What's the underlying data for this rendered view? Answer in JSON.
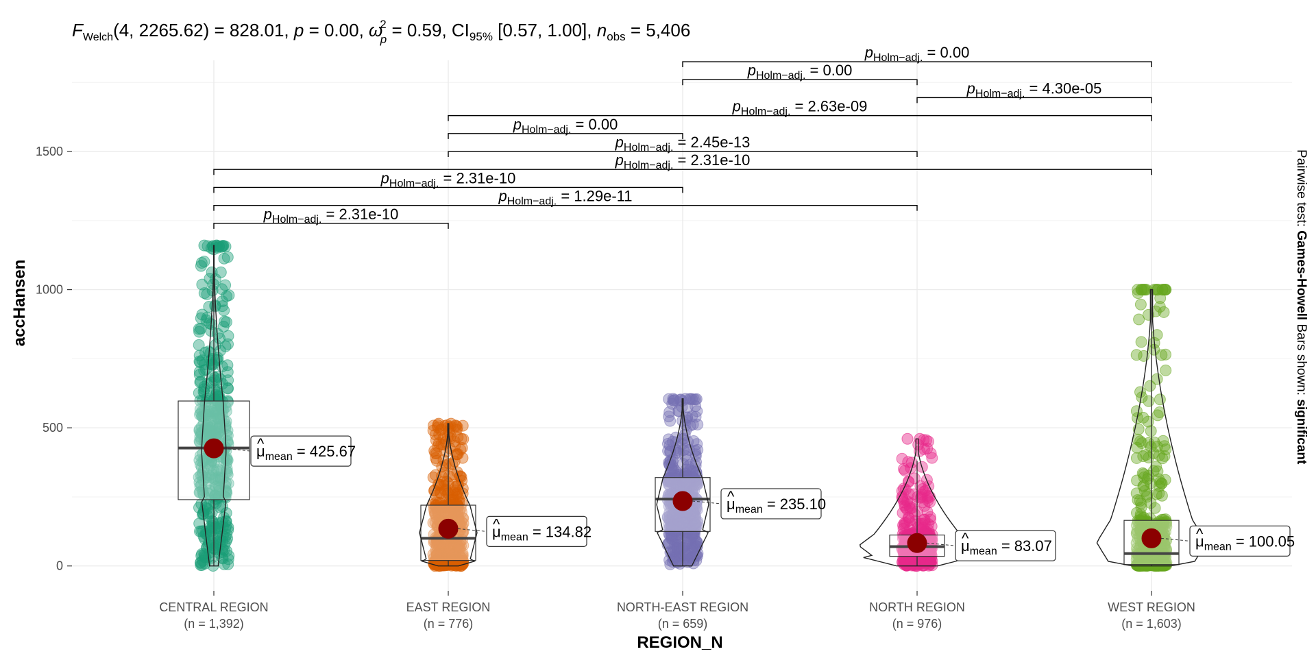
{
  "chart_data": {
    "type": "violin",
    "title": "F Welch(4, 2265.62) = 828.01, p = 0.00, ω̂²p = 0.59, CI95% [0.57, 1.00], n obs = 5,406",
    "title_parts": {
      "stat": "F",
      "stat_sub": "Welch",
      "df": "(4, 2265.62) = 828.01, ",
      "p": "p",
      "p_val": " = 0.00, ",
      "omega": "ω",
      "omega_sup": "2",
      "omega_sub": "p",
      "omega_val": " = 0.59, CI",
      "ci_sub": "95%",
      "ci_val": " [0.57, 1.00], ",
      "n": "n",
      "n_sub": "obs",
      "n_val": " = 5,406"
    },
    "xlabel": "REGION_N",
    "ylabel": "accHansen",
    "ylim": [
      -90,
      1830
    ],
    "yticks": [
      0,
      500,
      1000,
      1500
    ],
    "side_caption_prefix": "Pairwise test: ",
    "side_caption_test": "Games-Howell",
    "side_caption_middle": " Bars shown: ",
    "side_caption_bars": "significant",
    "mean_label_symbol": "μ",
    "mean_label_sub": "mean",
    "p_label_symbol": "p",
    "p_label_sub": "Holm−adj.",
    "groups": [
      {
        "name": "CENTRAL REGION",
        "n_label": "(n = 1,392)",
        "color": "#1b9e77",
        "mean": 425.67,
        "mean_label": "= 425.67",
        "median": 427,
        "q1": 240,
        "q3": 597,
        "whisker_low": 0,
        "whisker_high": 1150,
        "max": 1160
      },
      {
        "name": "EAST REGION",
        "n_label": "(n = 776)",
        "color": "#d95f02",
        "mean": 134.82,
        "mean_label": "= 134.82",
        "median": 100,
        "q1": 20,
        "q3": 220,
        "whisker_low": 0,
        "whisker_high": 500,
        "max": 515
      },
      {
        "name": "NORTH-EAST REGION",
        "n_label": "(n = 659)",
        "color": "#7570b3",
        "mean": 235.1,
        "mean_label": "= 235.10",
        "median": 242,
        "q1": 125,
        "q3": 320,
        "whisker_low": 0,
        "whisker_high": 600,
        "max": 605
      },
      {
        "name": "NORTH REGION",
        "n_label": "(n = 976)",
        "color": "#e7298a",
        "mean": 83.07,
        "mean_label": "= 83.07",
        "median": 70,
        "q1": 35,
        "q3": 112,
        "whisker_low": 0,
        "whisker_high": 380,
        "max": 460
      },
      {
        "name": "WEST REGION",
        "n_label": "(n = 1,603)",
        "color": "#66a61e",
        "mean": 100.05,
        "mean_label": "= 100.05",
        "median": 45,
        "q1": 5,
        "q3": 165,
        "whisker_low": 0,
        "whisker_high": 1000,
        "max": 1000
      }
    ],
    "pairwise": [
      {
        "from": 0,
        "to": 1,
        "y": 1240,
        "label": "= 2.31e-10"
      },
      {
        "from": 0,
        "to": 3,
        "y": 1305,
        "label": "= 1.29e-11"
      },
      {
        "from": 0,
        "to": 2,
        "y": 1370,
        "label": "= 2.31e-10"
      },
      {
        "from": 0,
        "to": 4,
        "y": 1435,
        "label": "= 2.31e-10"
      },
      {
        "from": 1,
        "to": 3,
        "y": 1500,
        "label": "= 2.45e-13"
      },
      {
        "from": 1,
        "to": 2,
        "y": 1565,
        "label": "= 0.00"
      },
      {
        "from": 1,
        "to": 4,
        "y": 1630,
        "label": "= 2.63e-09"
      },
      {
        "from": 3,
        "to": 4,
        "y": 1695,
        "label": "= 4.30e-05"
      },
      {
        "from": 2,
        "to": 3,
        "y": 1760,
        "label": "= 0.00"
      },
      {
        "from": 2,
        "to": 4,
        "y": 1825,
        "label": "= 0.00"
      }
    ]
  }
}
